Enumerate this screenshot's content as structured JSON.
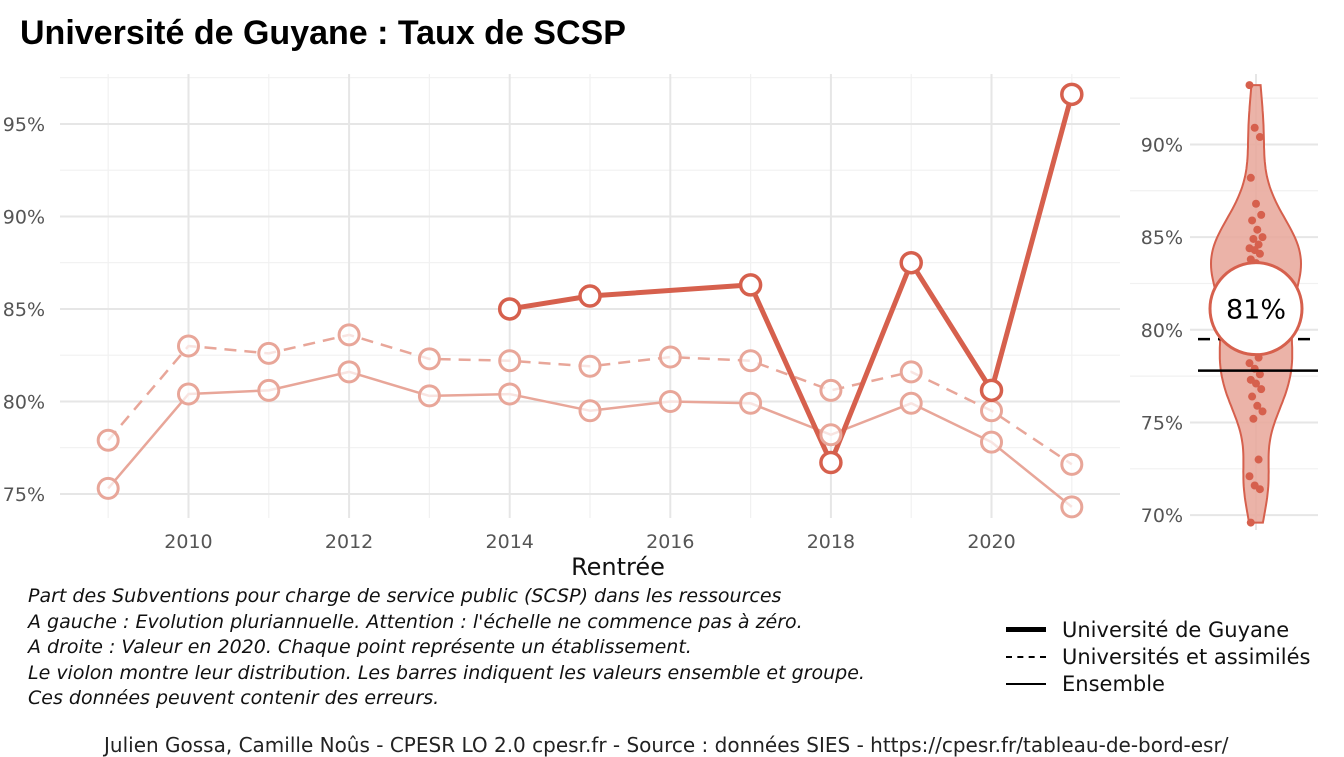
{
  "title": "Université de Guyane  :  Taux de SCSP",
  "chart_data": [
    {
      "type": "line",
      "xlabel": "Rentrée",
      "ylabel": "",
      "x": [
        2009,
        2010,
        2011,
        2012,
        2013,
        2014,
        2015,
        2016,
        2017,
        2018,
        2019,
        2020,
        2021
      ],
      "xticks": [
        2010,
        2012,
        2014,
        2016,
        2018,
        2020
      ],
      "xtick_labels": [
        "2010",
        "2012",
        "2014",
        "2016",
        "2018",
        "2020"
      ],
      "xlim": [
        2008.4,
        2021.6
      ],
      "ylim": [
        73.7,
        97.7
      ],
      "yticks": [
        75,
        80,
        85,
        90,
        95
      ],
      "ytick_labels": [
        "75%",
        "80%",
        "85%",
        "90%",
        "95%"
      ],
      "series": [
        {
          "name": "Université de Guyane",
          "style": "solid-bold",
          "color": "#d6604d",
          "values": [
            null,
            null,
            null,
            null,
            null,
            85.0,
            85.7,
            null,
            86.3,
            76.7,
            87.5,
            80.6,
            96.6
          ],
          "segments": [
            [
              2014,
              2015,
              2017,
              2018,
              2019,
              2020,
              2021
            ]
          ]
        },
        {
          "name": "Universités et assimilés",
          "style": "dashed",
          "color": "#e8a699",
          "values": [
            77.9,
            83.0,
            82.6,
            83.6,
            82.3,
            82.2,
            81.9,
            82.4,
            82.2,
            80.6,
            81.6,
            79.5,
            76.6
          ]
        },
        {
          "name": "Ensemble",
          "style": "solid-thin",
          "color": "#e8a699",
          "values": [
            75.3,
            80.4,
            80.6,
            81.6,
            80.3,
            80.4,
            79.5,
            80.0,
            79.9,
            78.2,
            79.9,
            77.8,
            74.3
          ]
        }
      ]
    },
    {
      "type": "violin",
      "ylim": [
        69.2,
        93.8
      ],
      "yticks": [
        70,
        75,
        80,
        85,
        90
      ],
      "ytick_labels": [
        "70%",
        "75%",
        "80%",
        "85%",
        "90%"
      ],
      "label": "81%",
      "label_value": 80.6,
      "ensemble_line": 77.8,
      "group_line": 79.5,
      "fill_color": "#e8a699",
      "line_color": "#d6604d",
      "points": [
        93.2,
        90.9,
        90.4,
        88.2,
        86.8,
        86.2,
        85.9,
        85.4,
        85.0,
        84.9,
        84.6,
        84.4,
        84.3,
        84.1,
        83.8,
        83.6,
        83.4,
        83.3,
        83.1,
        82.8,
        82.6,
        82.3,
        82.0,
        81.7,
        81.3,
        80.6,
        80.3,
        80.0,
        79.7,
        79.4,
        79.1,
        78.8,
        78.5,
        78.2,
        77.9,
        77.6,
        77.3,
        77.1,
        76.8,
        76.4,
        75.9,
        75.6,
        75.2,
        73.0,
        72.1,
        71.6,
        71.4,
        69.6
      ]
    }
  ],
  "notes": [
    "Part des Subventions pour charge de service public (SCSP) dans les ressources",
    "A gauche : Evolution pluriannuelle. Attention : l'échelle ne commence pas à zéro.",
    "A droite : Valeur en 2020. Chaque point représente un établissement.",
    "Le violon montre leur distribution. Les barres indiquent les valeurs ensemble et groupe.",
    "Ces données peuvent contenir des erreurs."
  ],
  "legend": [
    {
      "label": "Université de Guyane",
      "style": "solid-bold"
    },
    {
      "label": "Universités et assimilés",
      "style": "dashed"
    },
    {
      "label": "Ensemble",
      "style": "solid-thin"
    }
  ],
  "credit": "Julien Gossa, Camille Noûs - CPESR LO 2.0 cpesr.fr - Source : données SIES - https://cpesr.fr/tableau-de-bord-esr/"
}
